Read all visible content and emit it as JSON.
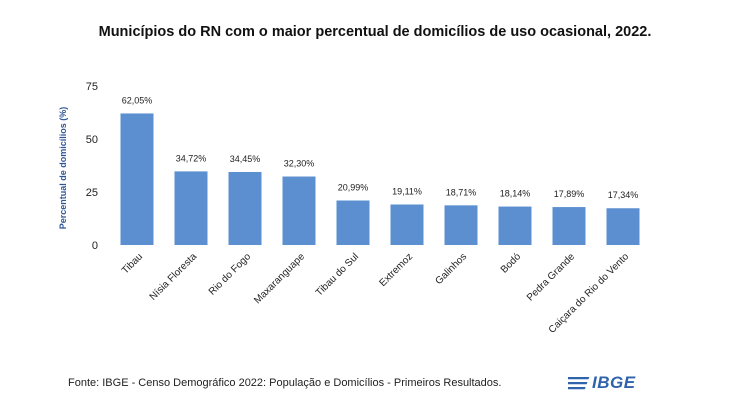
{
  "chart_data": {
    "type": "bar",
    "title": "Municípios do RN com o maior percentual de domicílios de uso ocasional, 2022.",
    "ylabel": "Percentual de domicílios (%)",
    "xlabel": "",
    "ylim": [
      0,
      75
    ],
    "yticks": [
      0,
      25,
      50,
      75
    ],
    "grid": false,
    "categories": [
      "Tibau",
      "Nísia Floresta",
      "Rio do Fogo",
      "Maxaranguape",
      "Tibau do Sul",
      "Extremoz",
      "Galinhos",
      "Bodó",
      "Pedra Grande",
      "Caiçara do Rio do Vento"
    ],
    "values": [
      62.05,
      34.72,
      34.45,
      32.3,
      20.99,
      19.11,
      18.71,
      18.14,
      17.89,
      17.34
    ],
    "data_labels": [
      "62,05%",
      "34,72%",
      "34,45%",
      "32,30%",
      "20,99%",
      "19,11%",
      "18,71%",
      "18,14%",
      "17,89%",
      "17,34%"
    ],
    "bar_color": "#5b8fd0",
    "axis_label_color": "#2f5597"
  },
  "footer": {
    "source": "Fonte: IBGE - Censo Demográfico 2022: População e Domicílios - Primeiros Resultados.",
    "logo_text": "IBGE",
    "logo_color": "#2f63ab"
  }
}
